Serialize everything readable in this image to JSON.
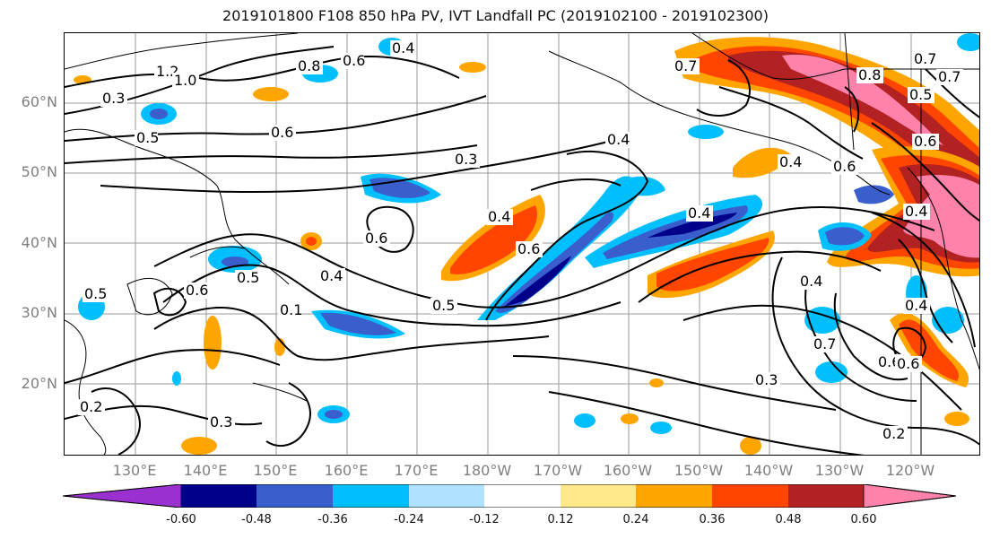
{
  "title": "2019101800 F108 850 hPa PV, IVT Landfall PC (2019102100 - 2019102300)",
  "lat_labels": [
    "60°N",
    "50°N",
    "40°N",
    "30°N",
    "20°N"
  ],
  "lon_labels": [
    "130°E",
    "140°E",
    "150°E",
    "160°E",
    "170°E",
    "180°W",
    "170°W",
    "160°W",
    "150°W",
    "140°W",
    "130°W",
    "120°W"
  ],
  "colorbar": {
    "tick_labels": [
      "-0.60",
      "-0.48",
      "-0.36",
      "-0.24",
      "-0.12",
      "0.12",
      "0.24",
      "0.36",
      "0.48",
      "0.60"
    ],
    "colors": [
      "#9b30d0",
      "#00008b",
      "#3a5fcd",
      "#00bfff",
      "#b0e2ff",
      "#ffffff",
      "#ffe98a",
      "#ffa500",
      "#ff4500",
      "#b22222",
      "#ff82ab"
    ]
  },
  "contour_labels": [
    "1.2",
    "1.0",
    "0.8",
    "0.6",
    "0.4",
    "0.5",
    "0.6",
    "0.3",
    "0.4",
    "0.6",
    "0.4",
    "0.5",
    "0.6",
    "0.4",
    "0.6",
    "0.7",
    "0.5",
    "0.4",
    "0.6",
    "0.4",
    "0.7",
    "0.8",
    "0.6",
    "0.4",
    "0.3",
    "0.5",
    "0.7",
    "0.6",
    "0.4",
    "0.2",
    "0.3",
    "0.2",
    "0.3",
    "0.4",
    "0.5",
    "0.7",
    "0.1",
    "0.6"
  ]
}
